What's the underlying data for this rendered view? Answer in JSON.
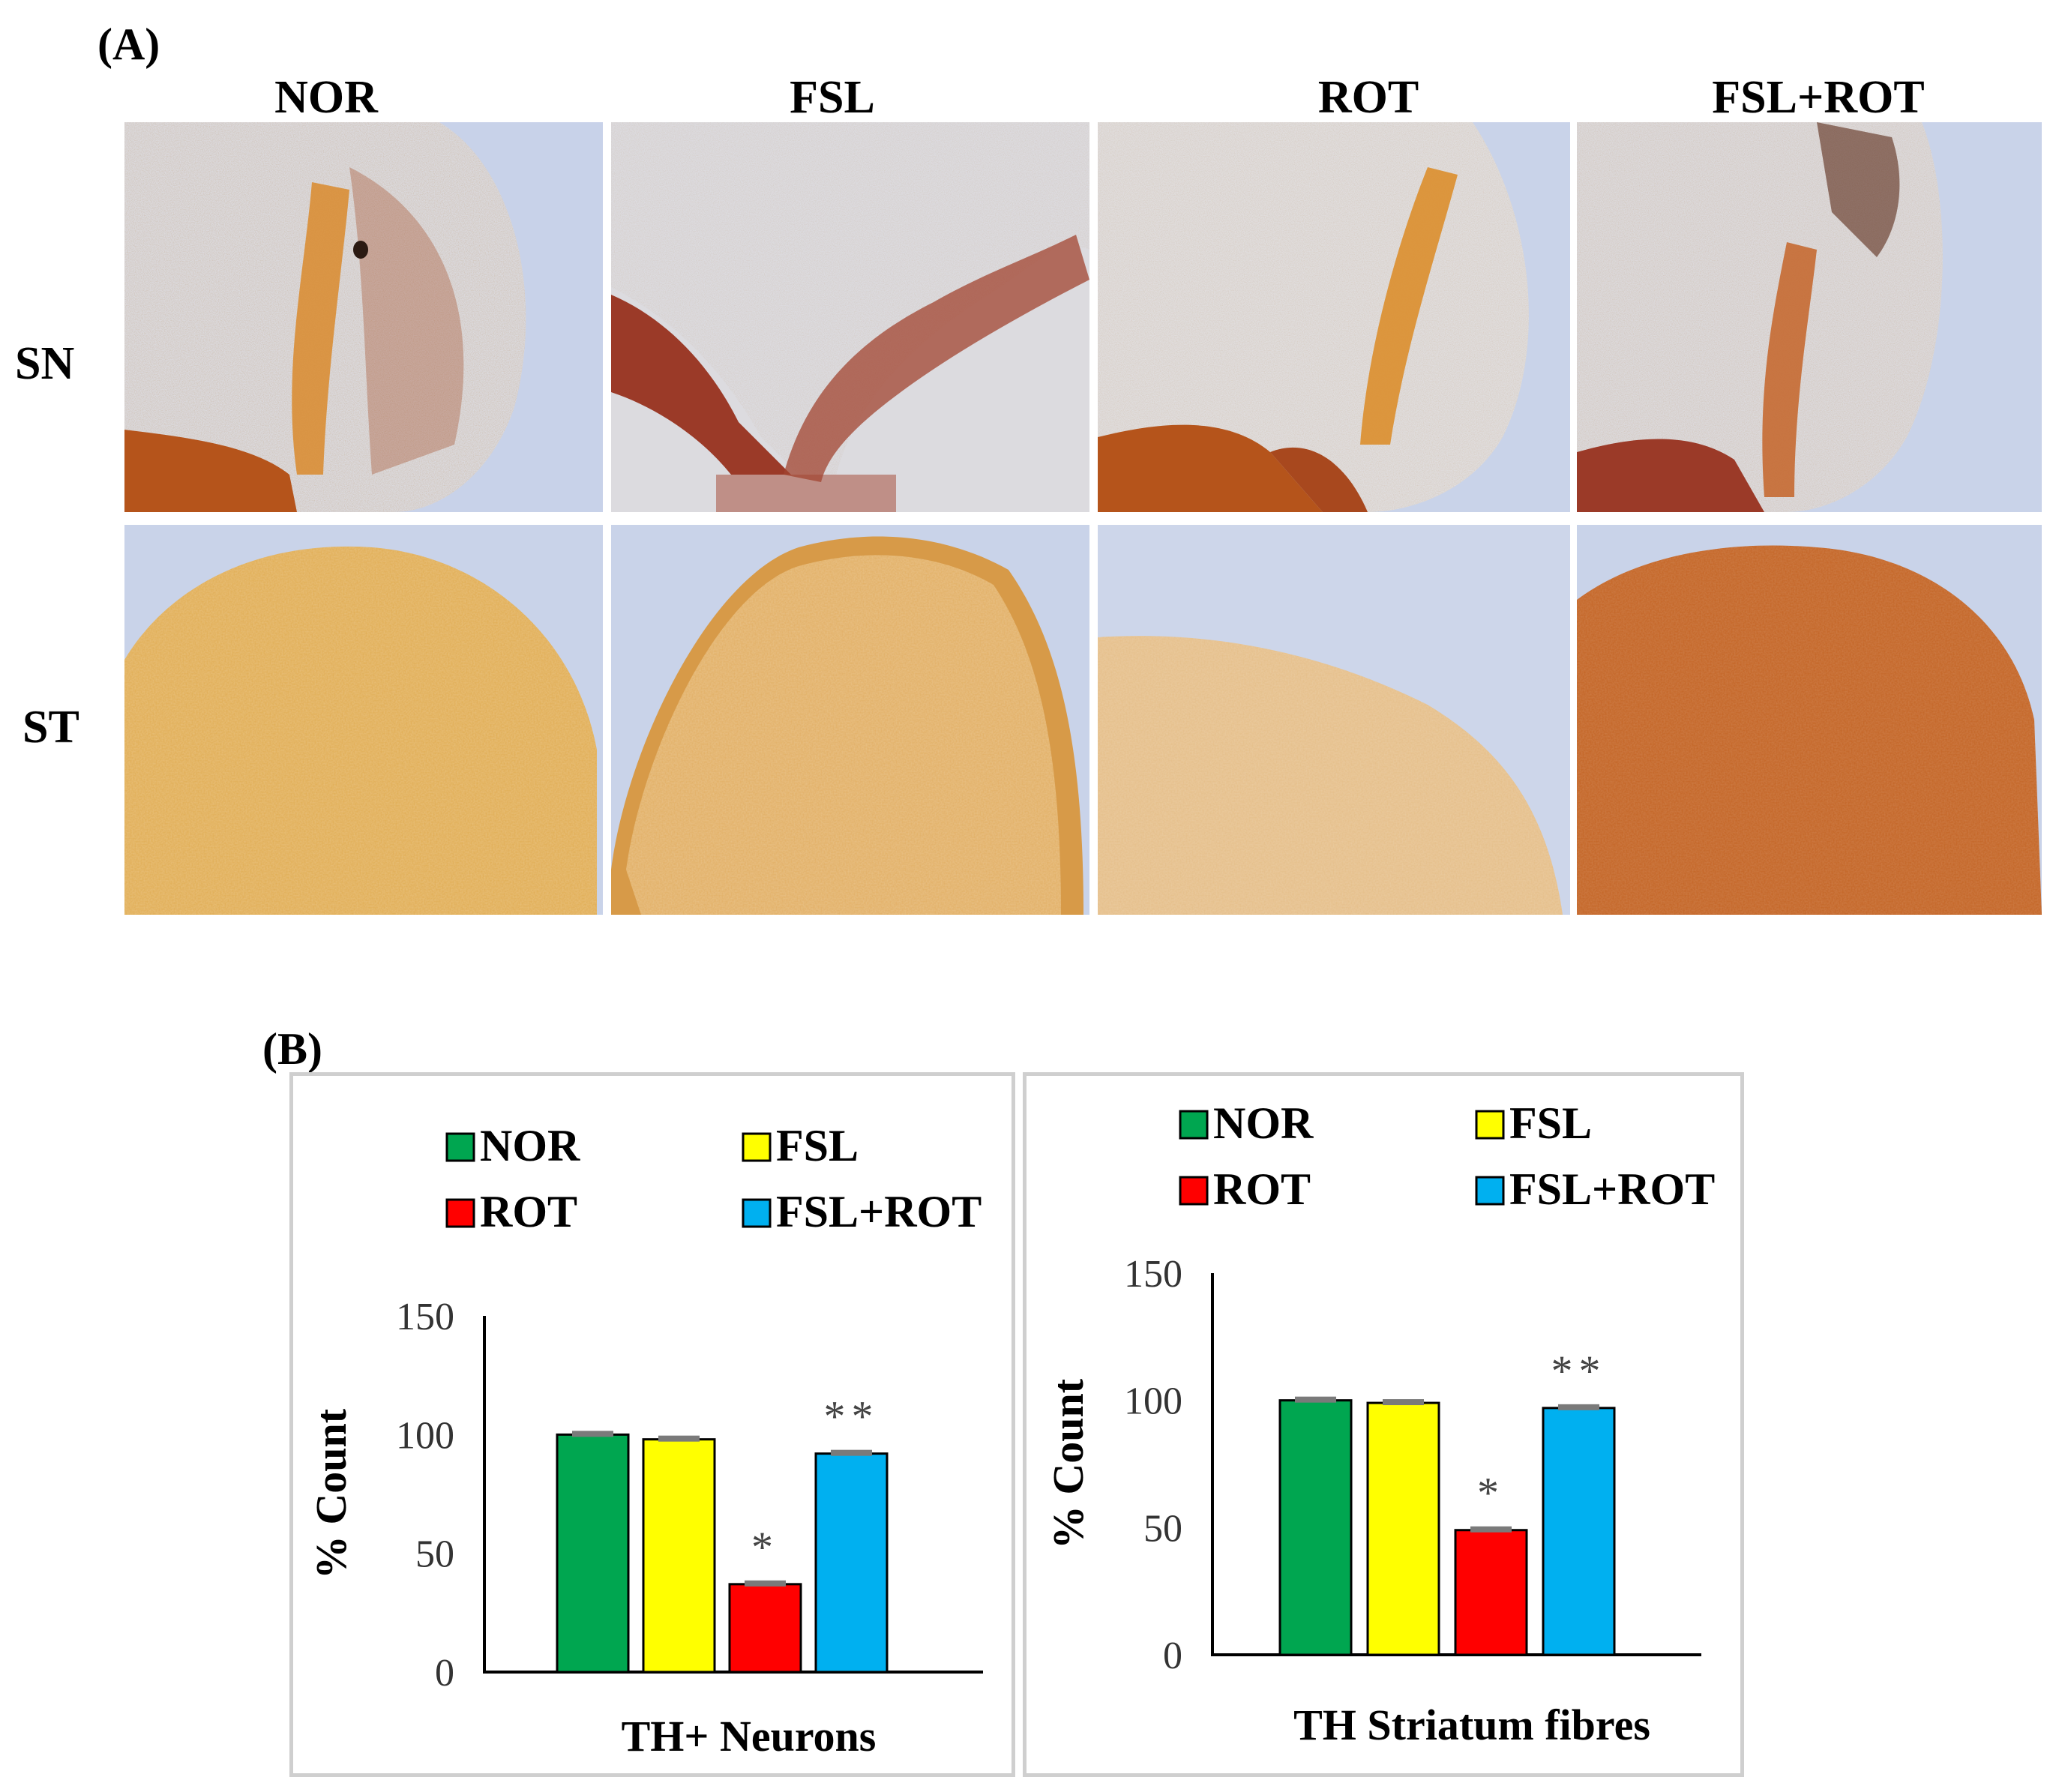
{
  "panel_a": {
    "label": "(A)",
    "columns": [
      "NOR",
      "FSL",
      "ROT",
      "FSL+ROT"
    ],
    "rows": [
      "SN",
      "ST"
    ]
  },
  "panel_b": {
    "label": "(B)"
  },
  "colors": {
    "NOR": "#00a650",
    "FSL": "#ffff00",
    "ROT": "#ff0000",
    "FSL+ROT": "#00b0f0",
    "stain_dark": "#b5541b",
    "stain_light": "#dca862",
    "background_tissue": "#c9d3e8"
  },
  "chart_data": [
    {
      "type": "bar",
      "legend": [
        "NOR",
        "FSL",
        "ROT",
        "FSL+ROT"
      ],
      "categories": [
        "NOR",
        "FSL",
        "ROT",
        "FSL+ROT"
      ],
      "values": [
        100,
        98,
        37,
        92
      ],
      "significance": [
        "",
        "",
        "*",
        "**"
      ],
      "ylabel": "% Count",
      "xlabel": "TH+ Neurons",
      "ylim": [
        0,
        150
      ],
      "yticks": [
        "0",
        "50",
        "100",
        "150"
      ],
      "grid": false
    },
    {
      "type": "bar",
      "legend": [
        "NOR",
        "FSL",
        "ROT",
        "FSL+ROT"
      ],
      "categories": [
        "NOR",
        "FSL",
        "ROT",
        "FSL+ROT"
      ],
      "values": [
        100,
        99,
        49,
        97
      ],
      "significance": [
        "",
        "",
        "*",
        "**"
      ],
      "ylabel": "% Count",
      "xlabel": "TH Striatum fibres",
      "ylim": [
        0,
        150
      ],
      "yticks": [
        "0",
        "50",
        "100",
        "150"
      ],
      "grid": false
    }
  ]
}
